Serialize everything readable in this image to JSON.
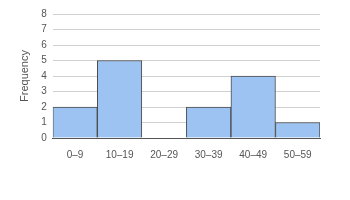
{
  "chart_data": {
    "type": "bar",
    "ylabel": "Frequency",
    "categories": [
      "0–9",
      "10–19",
      "20–29",
      "30–39",
      "40–49",
      "50–59"
    ],
    "values": [
      2,
      5,
      0,
      2,
      4,
      1
    ],
    "color": "#9cc3f2",
    "ylim": [
      0,
      8
    ],
    "yticks": [
      0,
      1,
      2,
      3,
      4,
      5,
      6,
      7,
      8
    ],
    "grid": true
  }
}
